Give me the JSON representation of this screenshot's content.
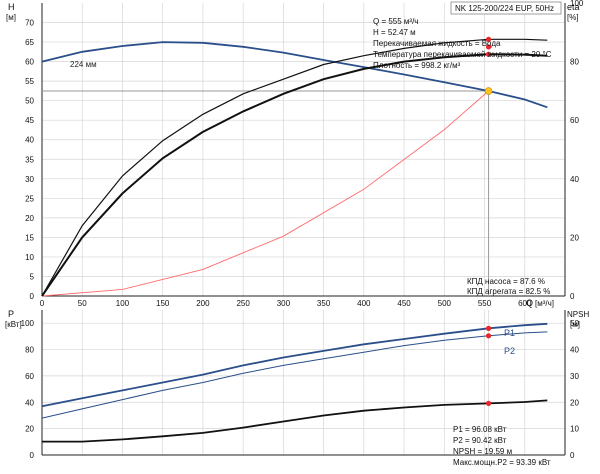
{
  "title_box": "NK 125-200/224 EUP, 50Hz",
  "info_lines": [
    "Q = 555 м³/ч",
    "H = 52.47 м",
    "Перекачиваемая жидкость = Вода",
    "Температура перекачиваемой жидкости = 20 °C",
    "Плотность = 998.2 кг/м³"
  ],
  "efficiency_lines": [
    "КПД насоса = 87.6 %",
    "КПД агрегата = 82.5 %"
  ],
  "power_lines": [
    "P1 = 96.08 кВт",
    "P2 = 90.42 кВт",
    "NPSH = 19.59 м",
    "Макс.мощн.P2 = 93.39 кВт"
  ],
  "curve_label": "224 мм",
  "colors": {
    "head_curve": "#2a4f8a",
    "system_curve": "#ff6b6b",
    "efficiency_curve": "#111111",
    "duty_point": "#ffc21a",
    "marker": "#e8262c",
    "grid": "#d6d6d6",
    "duty_line": "#9a9a9a"
  },
  "chart_data": [
    {
      "type": "line",
      "title": "",
      "xlabel": "Q",
      "x_unit": "[м³/ч]",
      "ylabel": "H",
      "y_unit": "[м]",
      "xlim": [
        0,
        650
      ],
      "ylim": [
        0,
        75
      ],
      "x_ticks": [
        0,
        50,
        100,
        150,
        200,
        250,
        300,
        350,
        400,
        450,
        500,
        550,
        600
      ],
      "y_ticks": [
        0,
        5,
        10,
        15,
        20,
        25,
        30,
        35,
        40,
        45,
        50,
        55,
        60,
        65,
        70
      ],
      "y2label": "eta",
      "y2_unit": "[%]",
      "y2lim": [
        0,
        100
      ],
      "y2_ticks": [
        0,
        20,
        40,
        60,
        80,
        100
      ],
      "grid": true,
      "duty_point": {
        "x": 555,
        "y": 52.47
      },
      "series": [
        {
          "name": "224 мм",
          "axis": "y",
          "points": [
            [
              0,
              60
            ],
            [
              50,
              62.5
            ],
            [
              100,
              64
            ],
            [
              150,
              65
            ],
            [
              200,
              64.8
            ],
            [
              250,
              63.8
            ],
            [
              300,
              62.3
            ],
            [
              350,
              60.4
            ],
            [
              400,
              58.6
            ],
            [
              450,
              56.7
            ],
            [
              500,
              54.7
            ],
            [
              555,
              52.47
            ],
            [
              600,
              50.3
            ],
            [
              628,
              48.3
            ]
          ]
        },
        {
          "axis": "y",
          "points": [
            [
              0,
              0
            ],
            [
              100,
              1.7
            ],
            [
              200,
              6.8
            ],
            [
              300,
              15.3
            ],
            [
              400,
              27.3
            ],
            [
              500,
              42.6
            ],
            [
              555,
              52.47
            ]
          ]
        },
        {
          "axis": "y2",
          "points": [
            [
              0,
              0
            ],
            [
              50,
              24
            ],
            [
              100,
              41
            ],
            [
              150,
              53
            ],
            [
              200,
              62
            ],
            [
              250,
              69
            ],
            [
              300,
              74
            ],
            [
              350,
              79
            ],
            [
              400,
              82
            ],
            [
              450,
              84.5
            ],
            [
              500,
              86.4
            ],
            [
              555,
              87.6
            ],
            [
              600,
              87.6
            ],
            [
              628,
              87.3
            ]
          ]
        },
        {
          "axis": "y2",
          "points": [
            [
              0,
              0
            ],
            [
              50,
              20
            ],
            [
              100,
              35
            ],
            [
              150,
              47
            ],
            [
              200,
              56
            ],
            [
              250,
              63
            ],
            [
              300,
              69
            ],
            [
              350,
              74
            ],
            [
              400,
              77.5
            ],
            [
              450,
              80
            ],
            [
              500,
              81.5
            ],
            [
              555,
              82.5
            ],
            [
              600,
              82.4
            ],
            [
              628,
              82
            ]
          ]
        }
      ],
      "markers": [
        {
          "x": 555,
          "y2": 87.6
        },
        {
          "x": 555,
          "y2": 85
        },
        {
          "x": 555,
          "y2": 82.5
        }
      ]
    },
    {
      "type": "line",
      "title": "",
      "xlabel": "",
      "ylabel": "P",
      "y_unit": "[кВт]",
      "xlim": [
        0,
        650
      ],
      "ylim": [
        0,
        110
      ],
      "y_ticks": [
        0,
        20,
        40,
        60,
        80,
        100
      ],
      "y2label": "NPSH",
      "y2_unit": "[м]",
      "y2lim": [
        0,
        55
      ],
      "y2_ticks": [
        0,
        10,
        20,
        30,
        40,
        50
      ],
      "grid": true,
      "series": [
        {
          "name": "P1",
          "axis": "y",
          "points": [
            [
              0,
              37
            ],
            [
              50,
              43
            ],
            [
              100,
              49
            ],
            [
              150,
              55
            ],
            [
              200,
              61
            ],
            [
              250,
              68
            ],
            [
              300,
              74
            ],
            [
              350,
              79
            ],
            [
              400,
              84
            ],
            [
              450,
              88
            ],
            [
              500,
              92
            ],
            [
              555,
              96.08
            ],
            [
              600,
              98.5
            ],
            [
              628,
              99.5
            ]
          ]
        },
        {
          "name": "P2",
          "axis": "y",
          "points": [
            [
              0,
              28
            ],
            [
              50,
              35
            ],
            [
              100,
              42
            ],
            [
              150,
              49
            ],
            [
              200,
              55
            ],
            [
              250,
              62
            ],
            [
              300,
              68
            ],
            [
              350,
              73
            ],
            [
              400,
              78
            ],
            [
              450,
              83
            ],
            [
              500,
              87
            ],
            [
              555,
              90.42
            ],
            [
              600,
              92.6
            ],
            [
              628,
              93.39
            ]
          ]
        },
        {
          "axis": "y2",
          "points": [
            [
              0,
              5.1
            ],
            [
              50,
              5.1
            ],
            [
              100,
              5.9
            ],
            [
              150,
              7.1
            ],
            [
              200,
              8.4
            ],
            [
              250,
              10.4
            ],
            [
              300,
              12.7
            ],
            [
              350,
              15
            ],
            [
              400,
              16.8
            ],
            [
              450,
              18
            ],
            [
              500,
              19
            ],
            [
              555,
              19.59
            ],
            [
              600,
              20.1
            ],
            [
              628,
              20.7
            ]
          ]
        }
      ],
      "markers": [
        {
          "x": 555,
          "y": 96.08
        },
        {
          "x": 555,
          "y": 90.42
        },
        {
          "x": 555,
          "y2": 19.59
        }
      ]
    }
  ]
}
